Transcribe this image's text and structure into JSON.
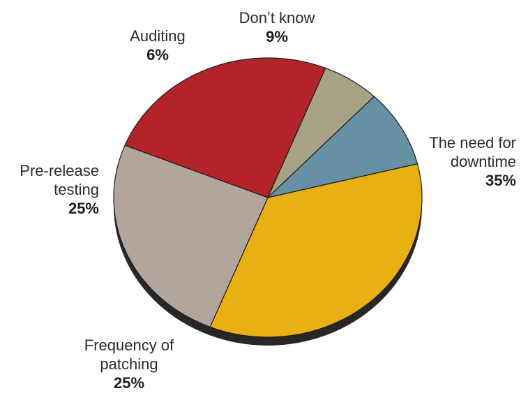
{
  "chart_data": {
    "type": "pie",
    "title": "",
    "slices": [
      {
        "label_lines": [
          "The need for",
          "downtime"
        ],
        "value": 35,
        "value_label": "35%",
        "color": "#e8b012"
      },
      {
        "label_lines": [
          "Frequency of",
          "patching"
        ],
        "value": 25,
        "value_label": "25%",
        "color": "#b1a59c"
      },
      {
        "label_lines": [
          "Pre-release",
          "testing"
        ],
        "value": 25,
        "value_label": "25%",
        "color": "#b22429"
      },
      {
        "label_lines": [
          "Auditing"
        ],
        "value": 6,
        "value_label": "6%",
        "color": "#a6a283"
      },
      {
        "label_lines": [
          "Don’t know"
        ],
        "value": 9,
        "value_label": "9%",
        "color": "#6690a3"
      }
    ],
    "shadow_color": "#2b2626",
    "outline_color": "#1a1a1a"
  }
}
